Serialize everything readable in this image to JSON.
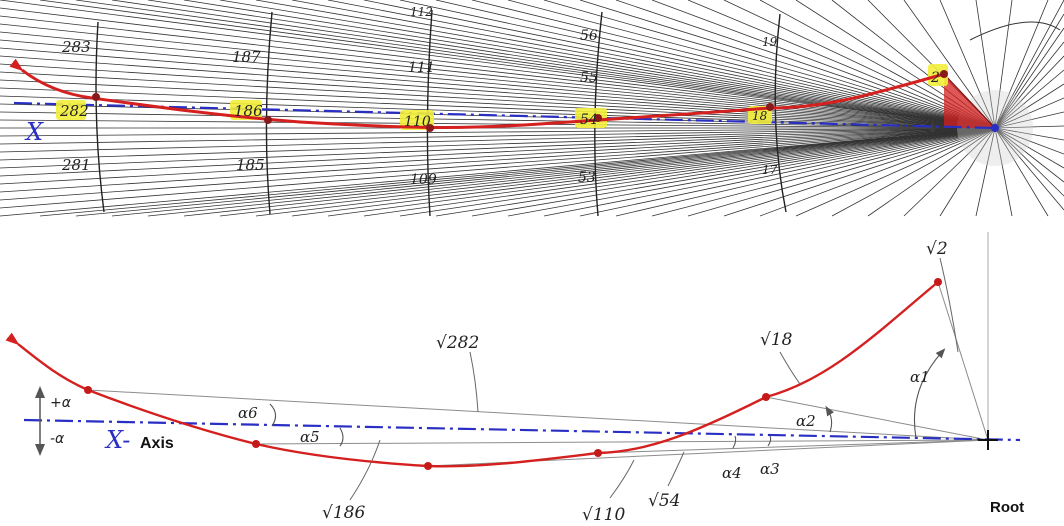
{
  "top_panel": {
    "x_symbol": "X",
    "rings": [
      {
        "upper": "283",
        "middle": "282",
        "lower": "281"
      },
      {
        "upper": "187",
        "middle": "186",
        "lower": "185"
      },
      {
        "upper": "111",
        "middle": "110",
        "lower": "109"
      },
      {
        "upper": "56",
        "extra": "55",
        "middle": "54",
        "lower": "53"
      },
      {
        "upper": "19",
        "middle": "18",
        "lower": "17"
      }
    ],
    "near_root_label": "2",
    "top_fragment": "112"
  },
  "bottom_panel": {
    "plus_alpha": "+α",
    "minus_alpha": "-α",
    "axis_symbol": "X-",
    "axis_word": "Axis",
    "root_label": "Root",
    "roots": {
      "r2": "√2",
      "r18": "√18",
      "r282": "√282",
      "r186": "√186",
      "r110": "√110",
      "r54": "√54"
    },
    "angles": {
      "a1": "α1",
      "a2": "α2",
      "a3": "α3",
      "a4": "α4",
      "a5": "α5",
      "a6": "α6"
    }
  },
  "colors": {
    "spiral": "#d4201f",
    "axis": "#2a2fc4",
    "highlight": "#f2ee3a",
    "ink": "#222222"
  }
}
